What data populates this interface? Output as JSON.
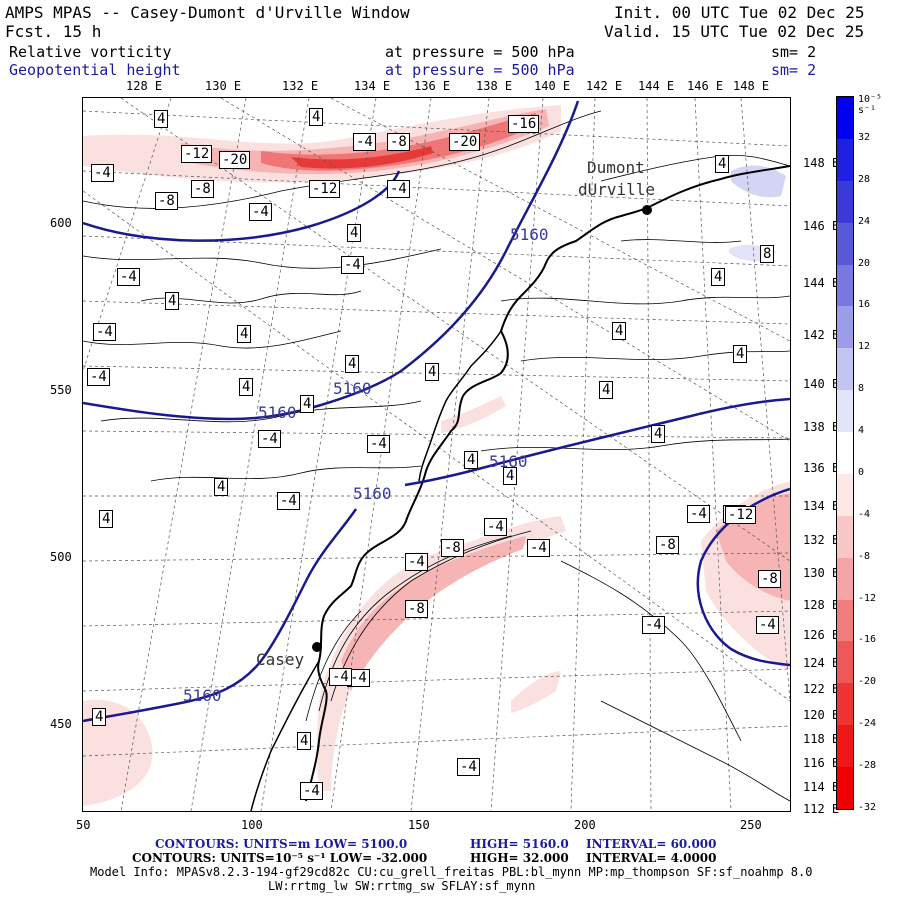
{
  "header": {
    "title": "AMPS MPAS -- Casey-Dumont d'Urville Window",
    "fcst": "Fcst.    15 h",
    "init": "Init. 00 UTC Tue 02 Dec 25",
    "valid": "Valid. 15 UTC Tue 02 Dec 25",
    "field1": "Relative vorticity",
    "field1_level": "at pressure =  500 hPa",
    "field1_sm": "sm= 2",
    "field2": "Geopotential height",
    "field2_level": "at pressure =  500 hPa",
    "field2_sm": "sm= 2"
  },
  "axes": {
    "lon_top": [
      "128 E",
      "130 E",
      "132 E",
      "134 E",
      "136 E",
      "138 E",
      "140 E",
      "142 E",
      "144 E",
      "146 E",
      "148 E"
    ],
    "lon_right": [
      "148 E",
      "146 E",
      "144 E",
      "142 E",
      "140 E",
      "138 E",
      "136 E",
      "134 E",
      "132 E",
      "130 E",
      "128 E",
      "126 E",
      "124 E",
      "122 E",
      "120 E",
      "118 E",
      "116 E",
      "114 E",
      "112 E"
    ],
    "y_ticks": [
      "600",
      "550",
      "500",
      "450"
    ],
    "x_ticks": [
      "50",
      "100",
      "150",
      "200",
      "250"
    ]
  },
  "colorbar": {
    "unit_label": "10⁻⁵ s⁻¹",
    "labels": [
      "32",
      "28",
      "24",
      "20",
      "16",
      "12",
      "8",
      "4",
      "0",
      "-4",
      "-8",
      "-12",
      "-16",
      "-20",
      "-24",
      "-28",
      "-32"
    ],
    "colors": [
      "#0000ee",
      "#2020e0",
      "#3a3ad8",
      "#5858d8",
      "#7878e0",
      "#9c9ce8",
      "#c4c4f0",
      "#e4e4f8",
      "#ffffff",
      "#fde8e8",
      "#f8c8c8",
      "#f4a4a4",
      "#f07c7c",
      "#ee5858",
      "#ee3434",
      "#ee1818",
      "#ee0000"
    ]
  },
  "map": {
    "stations": [
      {
        "name": "Casey"
      },
      {
        "name": "Dumont"
      },
      {
        "name": "dUrville"
      }
    ],
    "height_labels": [
      "5160",
      "5160",
      "5160",
      "5160",
      "5160",
      "5160"
    ],
    "vort_labels": [
      "4",
      "4",
      "-4",
      "-8",
      "-20",
      "-16",
      "-12",
      "-20",
      "-12",
      "-4",
      "-4",
      "-8",
      "-8",
      "-4",
      "4",
      "-4",
      "-4",
      "4",
      "-4",
      "4",
      "-4",
      "4",
      "4",
      "4",
      "4",
      "-4",
      "-4",
      "4",
      "-4",
      "4",
      "4",
      "4",
      "-4",
      "-8",
      "-4",
      "-4",
      "-8",
      "-8",
      "-4",
      "-4",
      "-4",
      "-4",
      "-12",
      "-8",
      "-4",
      "-4",
      "4",
      "4",
      "4",
      "8",
      "4",
      "4",
      "4",
      "4",
      "4",
      "-4",
      "-4"
    ]
  },
  "footer": {
    "line1_a": "CONTOURS:  UNITS=m  LOW=  5100.0",
    "line1_b": "HIGH=  5160.0",
    "line1_c": "INTERVAL=  60.000",
    "line2_a": "CONTOURS:  UNITS=10⁻⁵ s⁻¹  LOW= -32.000",
    "line2_b": "HIGH=  32.000",
    "line2_c": "INTERVAL=  4.0000",
    "line3": "Model Info: MPASv8.2.3-194-gf29cd82c CU:cu_grell_freitas PBL:bl_mynn MP:mp_thompson SF:sf_noahmp 8.0",
    "line4": "LW:rrtmg_lw SW:rrtmg_sw SFLAY:sf_mynn"
  }
}
